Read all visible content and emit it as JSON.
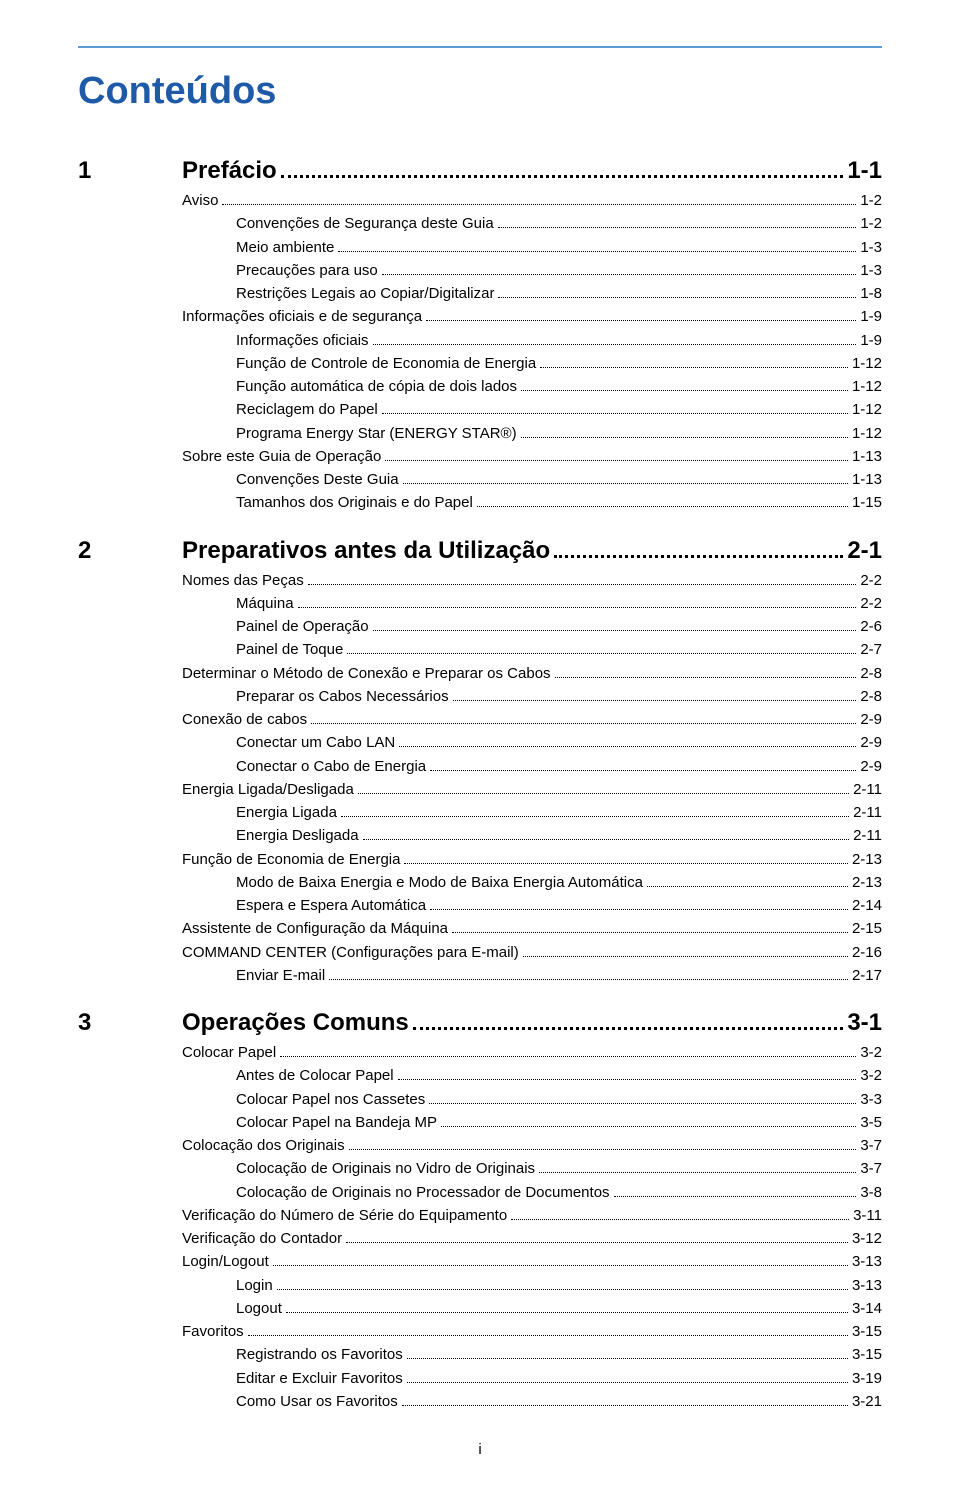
{
  "colors": {
    "rule": "#5b9bd5",
    "title": "#1e5aa8",
    "text": "#000000",
    "bg": "#ffffff"
  },
  "doc_title": "Conteúdos",
  "footer_page": "i",
  "chapters": [
    {
      "num": "1",
      "title": "Prefácio",
      "page": "1-1",
      "entries": [
        {
          "level": 1,
          "label": "Aviso",
          "page": "1-2"
        },
        {
          "level": 2,
          "label": "Convenções de Segurança deste Guia",
          "page": "1-2"
        },
        {
          "level": 2,
          "label": "Meio ambiente",
          "page": "1-3"
        },
        {
          "level": 2,
          "label": "Precauções para uso",
          "page": "1-3"
        },
        {
          "level": 2,
          "label": "Restrições Legais ao Copiar/Digitalizar",
          "page": "1-8"
        },
        {
          "level": 1,
          "label": "Informações oficiais e de segurança",
          "page": "1-9"
        },
        {
          "level": 2,
          "label": "Informações oficiais",
          "page": "1-9"
        },
        {
          "level": 2,
          "label": "Função de Controle de Economia de Energia",
          "page": "1-12"
        },
        {
          "level": 2,
          "label": "Função automática de cópia de dois lados",
          "page": "1-12"
        },
        {
          "level": 2,
          "label": "Reciclagem do Papel",
          "page": "1-12"
        },
        {
          "level": 2,
          "label": "Programa Energy Star (ENERGY STAR®)",
          "page": "1-12"
        },
        {
          "level": 1,
          "label": "Sobre este Guia de Operação",
          "page": "1-13"
        },
        {
          "level": 2,
          "label": "Convenções Deste Guia",
          "page": "1-13"
        },
        {
          "level": 2,
          "label": "Tamanhos dos Originais e do Papel",
          "page": "1-15"
        }
      ]
    },
    {
      "num": "2",
      "title": "Preparativos antes da Utilização",
      "page": "2-1",
      "entries": [
        {
          "level": 1,
          "label": "Nomes das Peças",
          "page": "2-2"
        },
        {
          "level": 2,
          "label": "Máquina",
          "page": "2-2"
        },
        {
          "level": 2,
          "label": "Painel de Operação",
          "page": "2-6"
        },
        {
          "level": 2,
          "label": "Painel de Toque",
          "page": "2-7"
        },
        {
          "level": 1,
          "label": "Determinar o Método de Conexão e Preparar os Cabos",
          "page": "2-8"
        },
        {
          "level": 2,
          "label": "Preparar os Cabos Necessários",
          "page": "2-8"
        },
        {
          "level": 1,
          "label": "Conexão de cabos",
          "page": "2-9"
        },
        {
          "level": 2,
          "label": "Conectar um Cabo LAN",
          "page": "2-9"
        },
        {
          "level": 2,
          "label": "Conectar o Cabo de Energia",
          "page": "2-9"
        },
        {
          "level": 1,
          "label": "Energia Ligada/Desligada",
          "page": "2-11"
        },
        {
          "level": 2,
          "label": "Energia Ligada",
          "page": "2-11"
        },
        {
          "level": 2,
          "label": "Energia Desligada",
          "page": "2-11"
        },
        {
          "level": 1,
          "label": "Função de Economia de Energia",
          "page": "2-13"
        },
        {
          "level": 2,
          "label": "Modo de Baixa Energia e Modo de Baixa Energia Automática",
          "page": "2-13"
        },
        {
          "level": 2,
          "label": "Espera e Espera Automática",
          "page": "2-14"
        },
        {
          "level": 1,
          "label": "Assistente de Configuração da Máquina",
          "page": "2-15"
        },
        {
          "level": 1,
          "label": "COMMAND CENTER (Configurações para E-mail)",
          "page": "2-16"
        },
        {
          "level": 2,
          "label": "Enviar E-mail",
          "page": "2-17"
        }
      ]
    },
    {
      "num": "3",
      "title": "Operações Comuns",
      "page": "3-1",
      "entries": [
        {
          "level": 1,
          "label": "Colocar Papel",
          "page": "3-2"
        },
        {
          "level": 2,
          "label": "Antes de Colocar Papel",
          "page": "3-2"
        },
        {
          "level": 2,
          "label": "Colocar Papel nos Cassetes",
          "page": "3-3"
        },
        {
          "level": 2,
          "label": "Colocar Papel na Bandeja MP",
          "page": "3-5"
        },
        {
          "level": 1,
          "label": "Colocação dos Originais",
          "page": "3-7"
        },
        {
          "level": 2,
          "label": "Colocação de Originais no Vidro de Originais",
          "page": "3-7"
        },
        {
          "level": 2,
          "label": "Colocação de Originais no Processador de Documentos",
          "page": "3-8"
        },
        {
          "level": 1,
          "label": "Verificação do Número de Série do Equipamento",
          "page": "3-11"
        },
        {
          "level": 1,
          "label": "Verificação do Contador",
          "page": "3-12"
        },
        {
          "level": 1,
          "label": "Login/Logout",
          "page": "3-13"
        },
        {
          "level": 2,
          "label": "Login",
          "page": "3-13"
        },
        {
          "level": 2,
          "label": "Logout",
          "page": "3-14"
        },
        {
          "level": 1,
          "label": "Favoritos",
          "page": "3-15"
        },
        {
          "level": 2,
          "label": "Registrando os Favoritos",
          "page": "3-15"
        },
        {
          "level": 2,
          "label": "Editar e Excluir Favoritos",
          "page": "3-19"
        },
        {
          "level": 2,
          "label": "Como Usar os Favoritos",
          "page": "3-21"
        }
      ]
    }
  ]
}
